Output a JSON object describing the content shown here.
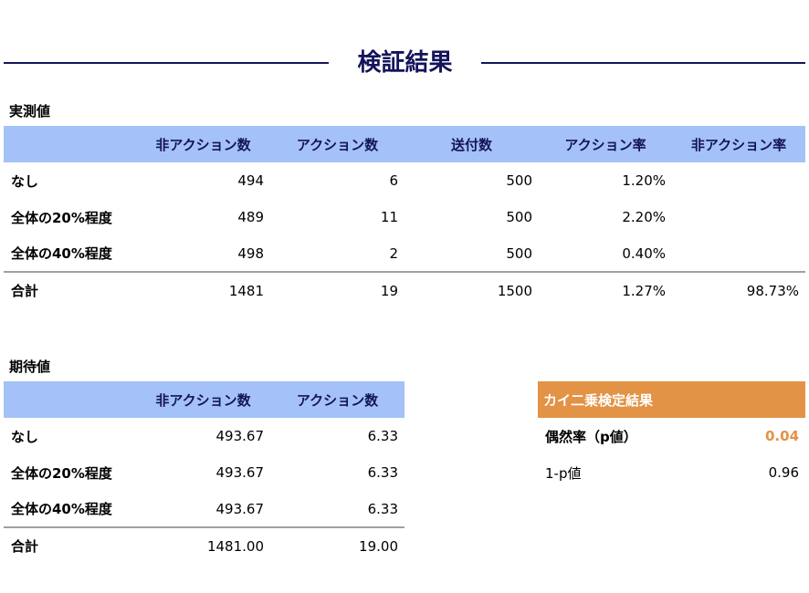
{
  "page": {
    "title": "検証結果"
  },
  "observed": {
    "label": "実測値",
    "headers": [
      "",
      "非アクション数",
      "アクション数",
      "送付数",
      "アクション率",
      "非アクション率"
    ],
    "rows": [
      {
        "label": "なし",
        "non_action": "494",
        "action": "6",
        "sent": "500",
        "action_rate": "1.20%",
        "non_action_rate": ""
      },
      {
        "label": "全体の20%程度",
        "non_action": "489",
        "action": "11",
        "sent": "500",
        "action_rate": "2.20%",
        "non_action_rate": ""
      },
      {
        "label": "全体の40%程度",
        "non_action": "498",
        "action": "2",
        "sent": "500",
        "action_rate": "0.40%",
        "non_action_rate": ""
      }
    ],
    "total": {
      "label": "合計",
      "non_action": "1481",
      "action": "19",
      "sent": "1500",
      "action_rate": "1.27%",
      "non_action_rate": "98.73%"
    }
  },
  "expected": {
    "label": "期待値",
    "headers": [
      "",
      "非アクション数",
      "アクション数"
    ],
    "rows": [
      {
        "label": "なし",
        "non_action": "493.67",
        "action": "6.33"
      },
      {
        "label": "全体の20%程度",
        "non_action": "493.67",
        "action": "6.33"
      },
      {
        "label": "全体の40%程度",
        "non_action": "493.67",
        "action": "6.33"
      }
    ],
    "total": {
      "label": "合計",
      "non_action": "1481.00",
      "action": "19.00"
    }
  },
  "chi_square": {
    "title": "カイ二乗検定結果",
    "p_label": "偶然率（p値）",
    "p_value": "0.04",
    "one_minus_p_label": "1-p値",
    "one_minus_p_value": "0.96"
  },
  "colors": {
    "header_bg": "#a4c2f7",
    "title_navy": "#14145a",
    "accent_orange": "#e29345",
    "divider_gray": "#a0a0a0"
  }
}
